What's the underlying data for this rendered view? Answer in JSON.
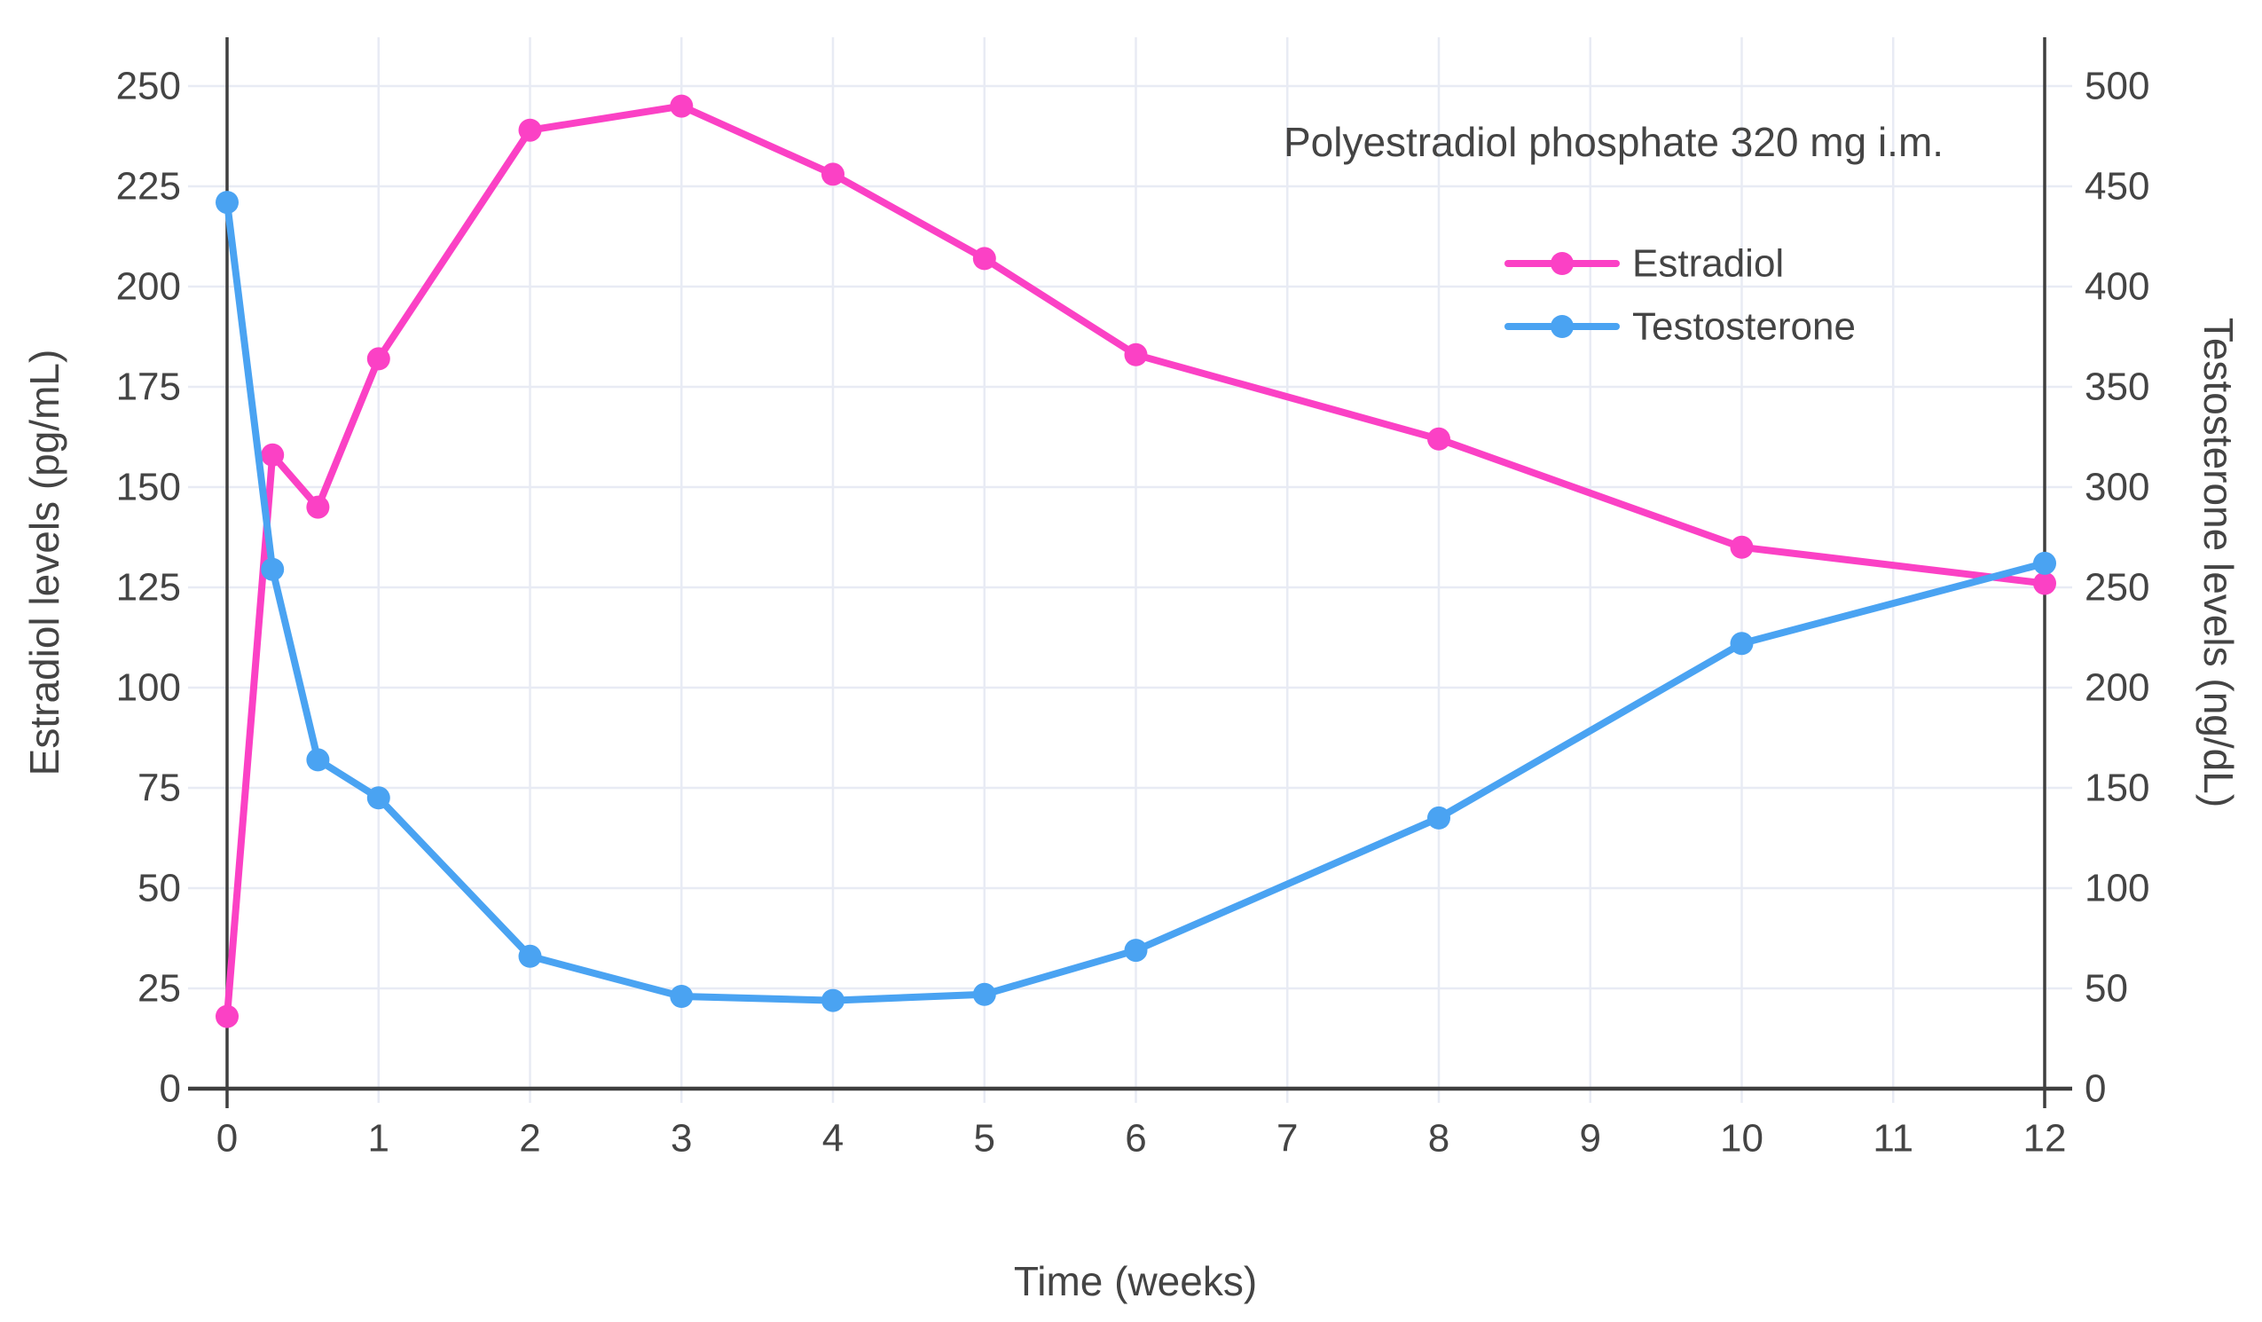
{
  "colors": {
    "estradiol": "#fb41c5",
    "testosterone": "#4aa3f2",
    "grid": "#e8ebf4",
    "axis": "#3f3f3f",
    "text": "#444444",
    "background": "#ffffff"
  },
  "chart_data": {
    "type": "line",
    "title_annotation": "Polyestradiol phosphate 320 mg i.m.",
    "xlabel": "Time (weeks)",
    "ylabel_left": "Estradiol levels (pg/mL)",
    "ylabel_right": "Testosterone levels (ng/dL)",
    "x": [
      0,
      0.3,
      0.6,
      1,
      2,
      3,
      4,
      5,
      6,
      8,
      10,
      12
    ],
    "x_ticks": [
      0,
      1,
      2,
      3,
      4,
      5,
      6,
      7,
      8,
      9,
      10,
      11,
      12
    ],
    "y_left": {
      "min": 0,
      "max": 262,
      "ticks": [
        0,
        25,
        50,
        75,
        100,
        125,
        150,
        175,
        200,
        225,
        250
      ]
    },
    "y_right": {
      "min": 0,
      "max": 524,
      "ticks": [
        0,
        50,
        100,
        150,
        200,
        250,
        300,
        350,
        400,
        450,
        500
      ]
    },
    "grid": true,
    "legend_position": "inside-top-right",
    "series": [
      {
        "name": "Estradiol",
        "axis": "left",
        "color": "#fb41c5",
        "values": [
          18,
          158,
          145,
          182,
          239,
          245,
          228,
          207,
          183,
          162,
          135,
          126
        ]
      },
      {
        "name": "Testosterone",
        "axis": "right",
        "color": "#4aa3f2",
        "values": [
          442,
          259,
          164,
          145,
          66,
          46,
          44,
          47,
          69,
          135,
          222,
          262
        ]
      }
    ]
  }
}
